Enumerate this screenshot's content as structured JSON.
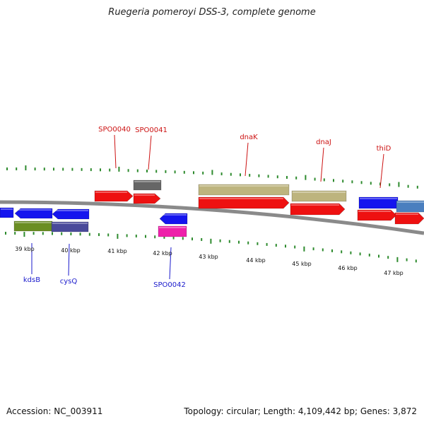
{
  "title": "Ruegeria pomeroyi DSS-3, complete genome",
  "footer": {
    "accession": "Accession: NC_003911",
    "summary": "Topology: circular; Length: 4,109,442 bp; Genes: 3,872"
  },
  "colors": {
    "backbone": "#8a8a8a",
    "tick": "#2e8b2e",
    "label_forward": "#cc1111",
    "label_reverse": "#1a1acc",
    "red": "#ee1111",
    "khaki": "#bdb47e",
    "gray": "#666666",
    "blue": "#1515ee",
    "steelblue": "#4a7fbf",
    "olive": "#6b8e23",
    "slate": "#4a4a9a",
    "pink": "#ee22aa"
  },
  "scale": {
    "labels": [
      "39 kbp",
      "40 kbp",
      "41 kbp",
      "42 kbp",
      "43 kbp",
      "44 kbp",
      "45 kbp",
      "46 kbp",
      "47 kbp"
    ]
  },
  "gene_labels": {
    "forward": [
      "SPO0040",
      "SPO0041",
      "dnaK",
      "dnaJ",
      "thiD"
    ],
    "reverse": [
      "kdsB",
      "cysQ",
      "SPO0042"
    ]
  }
}
